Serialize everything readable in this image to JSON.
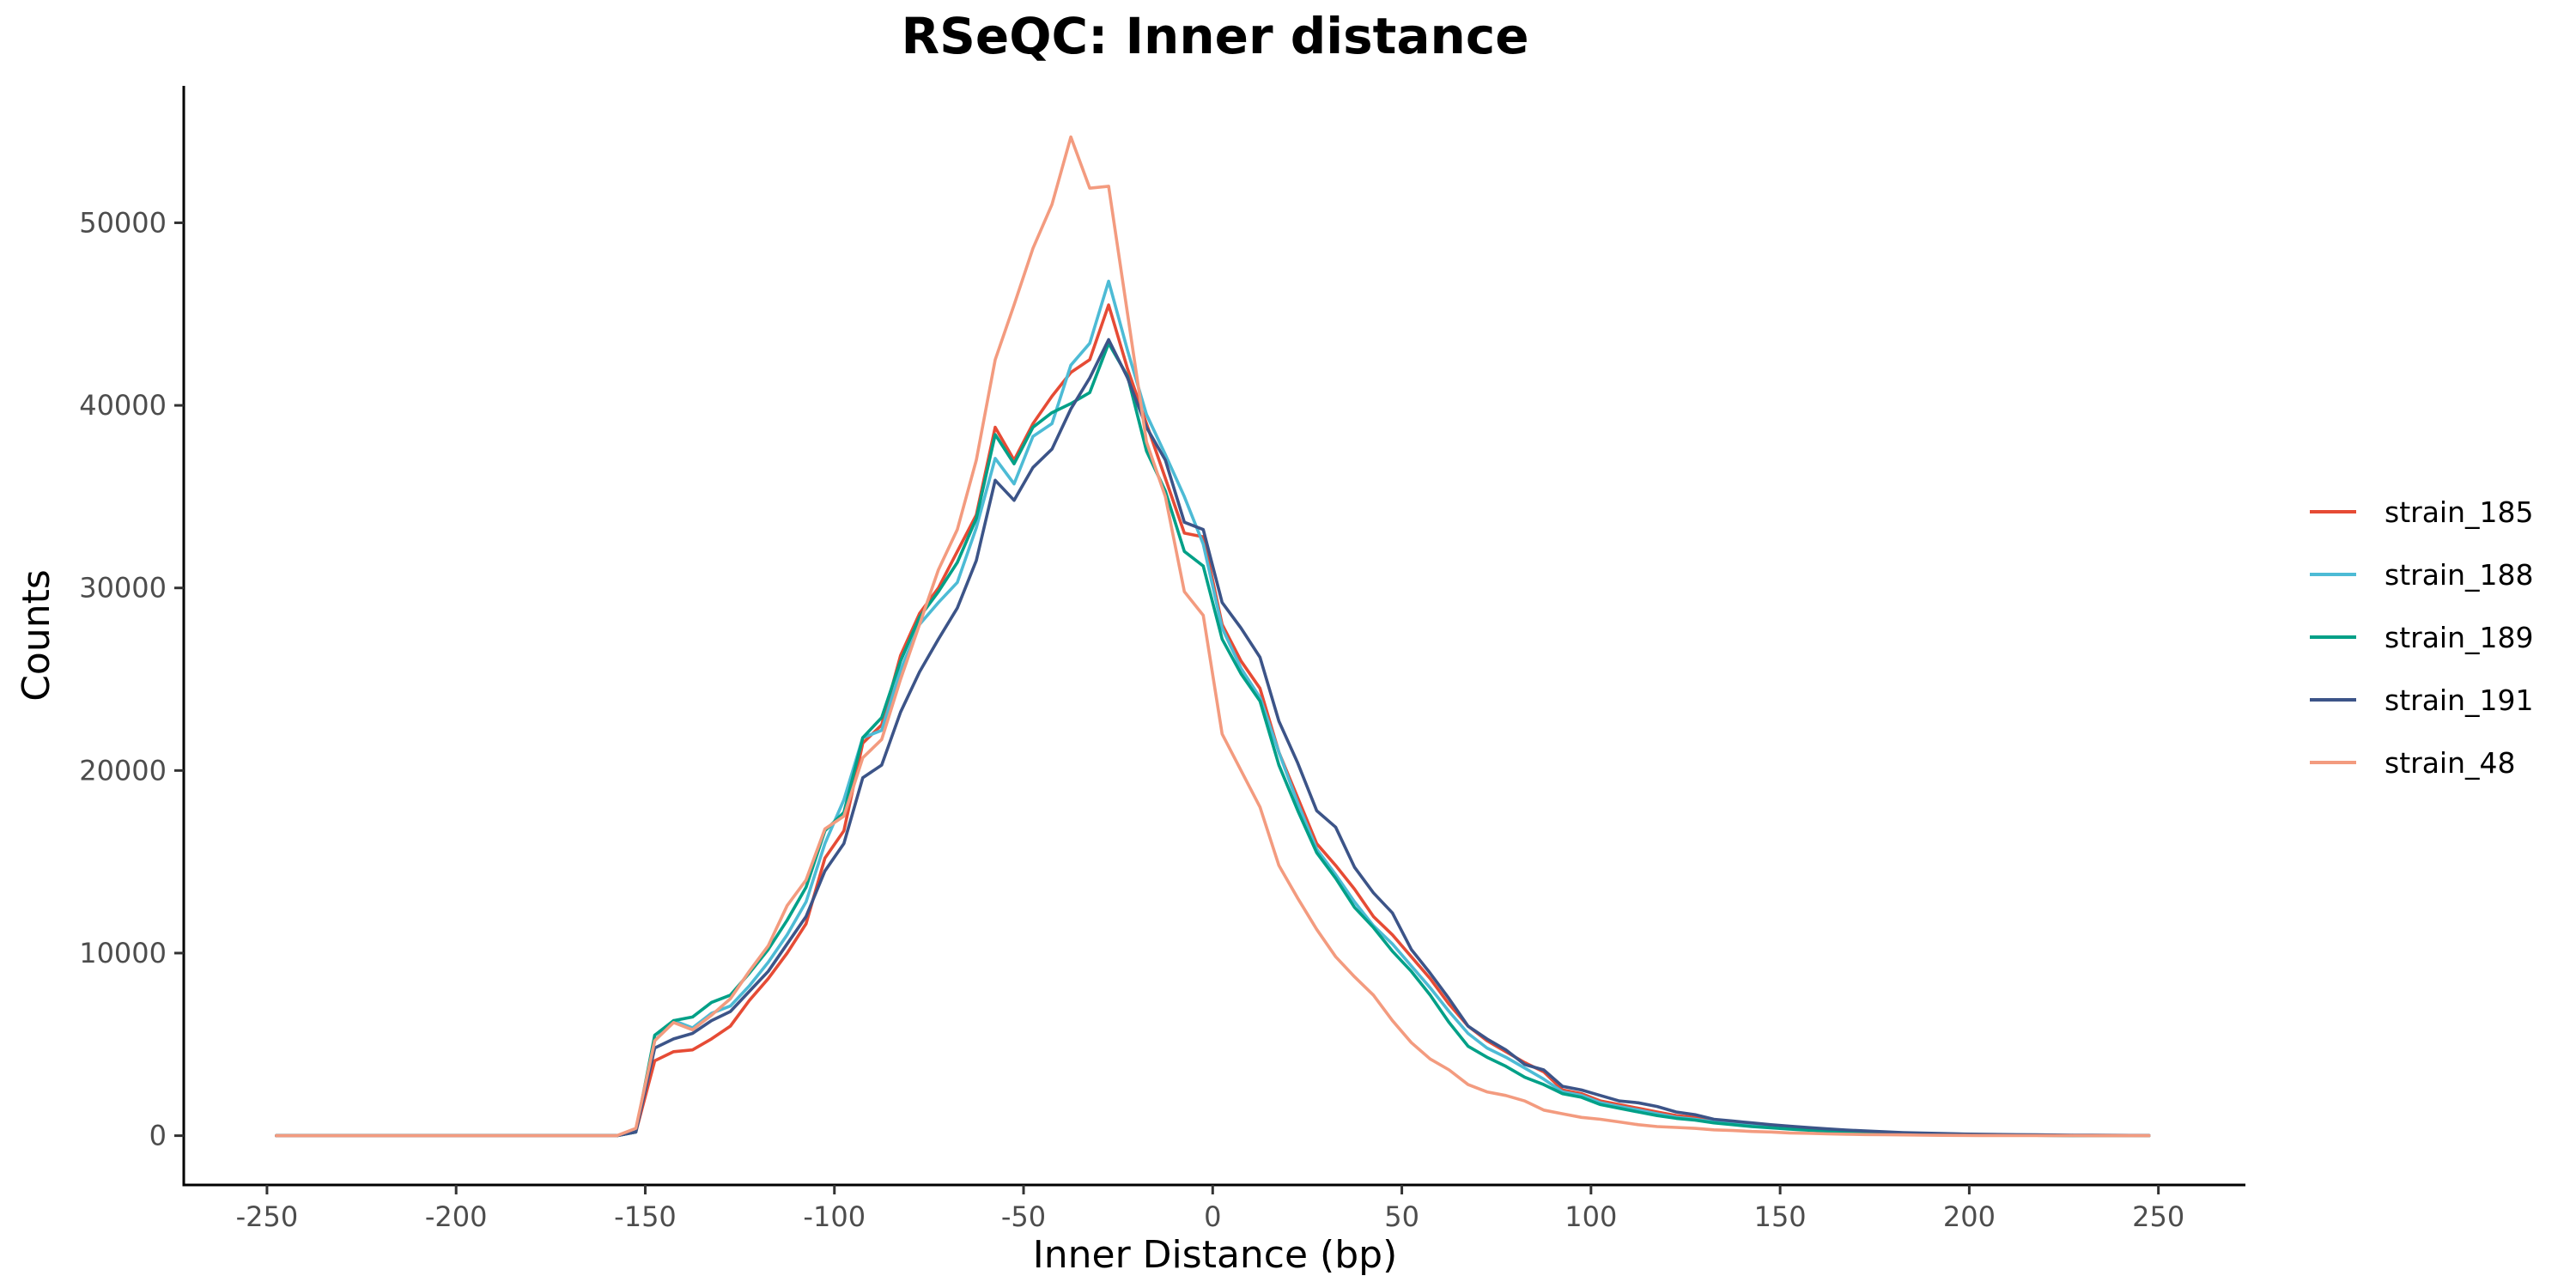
{
  "chart_data": {
    "type": "line",
    "title": "RSeQC: Inner distance",
    "xlabel": "Inner Distance (bp)",
    "ylabel": "Counts",
    "xlim": [
      -272,
      273
    ],
    "ylim": [
      -2700,
      57500
    ],
    "xticks": [
      -250,
      -200,
      -150,
      -100,
      -50,
      0,
      50,
      100,
      150,
      200,
      250
    ],
    "yticks": [
      0,
      10000,
      20000,
      30000,
      40000,
      50000
    ],
    "grid": false,
    "legend_position": "right",
    "x": [
      -247.5,
      -157.5,
      -152.5,
      -147.5,
      -142.5,
      -137.5,
      -132.5,
      -127.5,
      -122.5,
      -117.5,
      -112.5,
      -107.5,
      -102.5,
      -97.5,
      -92.5,
      -87.5,
      -82.5,
      -77.5,
      -72.5,
      -67.5,
      -62.5,
      -57.5,
      -52.5,
      -47.5,
      -42.5,
      -37.5,
      -32.5,
      -27.5,
      -22.5,
      -17.5,
      -12.5,
      -7.5,
      -2.5,
      2.5,
      7.5,
      12.5,
      17.5,
      22.5,
      27.5,
      32.5,
      37.5,
      42.5,
      47.5,
      52.5,
      57.5,
      62.5,
      67.5,
      72.5,
      77.5,
      82.5,
      87.5,
      92.5,
      97.5,
      102.5,
      107.5,
      112.5,
      117.5,
      122.5,
      127.5,
      132.5,
      137.5,
      142.5,
      147.5,
      152.5,
      157.5,
      162.5,
      167.5,
      172.5,
      177.5,
      182.5,
      187.5,
      192.5,
      197.5,
      202.5,
      207.5,
      212.5,
      217.5,
      222.5,
      227.5,
      232.5,
      237.5,
      242.5,
      247.5
    ],
    "series": [
      {
        "name": "strain_185",
        "color": "#e64b35",
        "values": [
          0,
          0,
          200,
          4100,
          4600,
          4700,
          5300,
          6000,
          7400,
          8600,
          10000,
          11600,
          15200,
          16700,
          21500,
          22500,
          26300,
          28600,
          30000,
          32000,
          34000,
          38800,
          37000,
          39000,
          40500,
          41800,
          42500,
          45500,
          42000,
          39000,
          36000,
          33000,
          32800,
          28000,
          26000,
          24500,
          21000,
          18500,
          16000,
          14800,
          13500,
          12000,
          11000,
          9800,
          8600,
          7200,
          6000,
          5200,
          4600,
          4000,
          3500,
          2500,
          2300,
          1900,
          1700,
          1500,
          1300,
          1100,
          1000,
          800,
          700,
          600,
          500,
          450,
          350,
          300,
          250,
          200,
          150,
          120,
          100,
          80,
          60,
          50,
          40,
          30,
          20,
          15,
          10,
          10,
          5,
          5,
          0
        ]
      },
      {
        "name": "strain_188",
        "color": "#4dbbd5",
        "values": [
          0,
          0,
          200,
          5200,
          6300,
          5900,
          6700,
          7100,
          8200,
          9500,
          11000,
          12800,
          16000,
          18400,
          21800,
          22200,
          25500,
          28000,
          29200,
          30300,
          33300,
          37100,
          35700,
          38300,
          39000,
          42200,
          43400,
          46800,
          43000,
          39500,
          37300,
          35000,
          32400,
          27800,
          25600,
          24000,
          21000,
          18200,
          15700,
          14300,
          12800,
          11500,
          10500,
          9300,
          8100,
          6800,
          5600,
          4800,
          4300,
          3700,
          3100,
          2400,
          2200,
          1800,
          1600,
          1400,
          1200,
          1000,
          900,
          750,
          650,
          550,
          470,
          400,
          320,
          270,
          220,
          180,
          140,
          110,
          90,
          70,
          55,
          45,
          35,
          25,
          20,
          15,
          10,
          8,
          5,
          5,
          0
        ]
      },
      {
        "name": "strain_189",
        "color": "#00a087",
        "values": [
          0,
          0,
          200,
          5500,
          6300,
          6500,
          7300,
          7700,
          8900,
          10200,
          11800,
          13600,
          16700,
          17700,
          21800,
          22900,
          26000,
          28400,
          29800,
          31400,
          33800,
          38400,
          36800,
          38800,
          39600,
          40100,
          40700,
          43400,
          41600,
          37500,
          35300,
          32000,
          31200,
          27200,
          25300,
          23800,
          20300,
          17800,
          15500,
          14100,
          12500,
          11400,
          10100,
          9000,
          7700,
          6200,
          4900,
          4300,
          3800,
          3200,
          2800,
          2300,
          2100,
          1700,
          1500,
          1300,
          1100,
          950,
          850,
          700,
          600,
          500,
          430,
          360,
          300,
          250,
          200,
          160,
          130,
          100,
          80,
          65,
          50,
          40,
          30,
          25,
          18,
          12,
          8,
          6,
          4,
          3,
          0
        ]
      },
      {
        "name": "strain_191",
        "color": "#3c5488",
        "values": [
          0,
          0,
          200,
          4800,
          5300,
          5600,
          6300,
          6800,
          7900,
          9000,
          10500,
          12000,
          14500,
          16000,
          19600,
          20300,
          23200,
          25400,
          27200,
          28900,
          31500,
          35900,
          34800,
          36600,
          37600,
          39800,
          41500,
          43600,
          41500,
          38800,
          37000,
          33600,
          33200,
          29200,
          27800,
          26200,
          22700,
          20400,
          17800,
          16900,
          14700,
          13300,
          12200,
          10200,
          8900,
          7500,
          6000,
          5300,
          4700,
          3900,
          3600,
          2700,
          2500,
          2200,
          1900,
          1800,
          1600,
          1300,
          1150,
          900,
          800,
          700,
          600,
          520,
          440,
          370,
          310,
          260,
          210,
          170,
          140,
          115,
          95,
          80,
          65,
          55,
          45,
          35,
          28,
          22,
          18,
          14,
          10
        ]
      },
      {
        "name": "strain_48",
        "color": "#f39b7f",
        "values": [
          0,
          0,
          400,
          5200,
          6200,
          5800,
          6600,
          7500,
          9000,
          10400,
          12600,
          14000,
          16800,
          17500,
          20700,
          21700,
          25000,
          28000,
          31000,
          33200,
          37000,
          42500,
          45500,
          48600,
          51000,
          54700,
          51900,
          52000,
          45000,
          38000,
          35000,
          29800,
          28500,
          22000,
          20000,
          18000,
          14800,
          13000,
          11300,
          9800,
          8700,
          7700,
          6300,
          5100,
          4200,
          3600,
          2800,
          2400,
          2200,
          1900,
          1400,
          1200,
          1000,
          900,
          750,
          600,
          500,
          450,
          400,
          320,
          280,
          230,
          200,
          150,
          130,
          100,
          80,
          60,
          50,
          40,
          30,
          20,
          15,
          10,
          8,
          5,
          4,
          3,
          2,
          1,
          0,
          0,
          0
        ]
      }
    ]
  }
}
